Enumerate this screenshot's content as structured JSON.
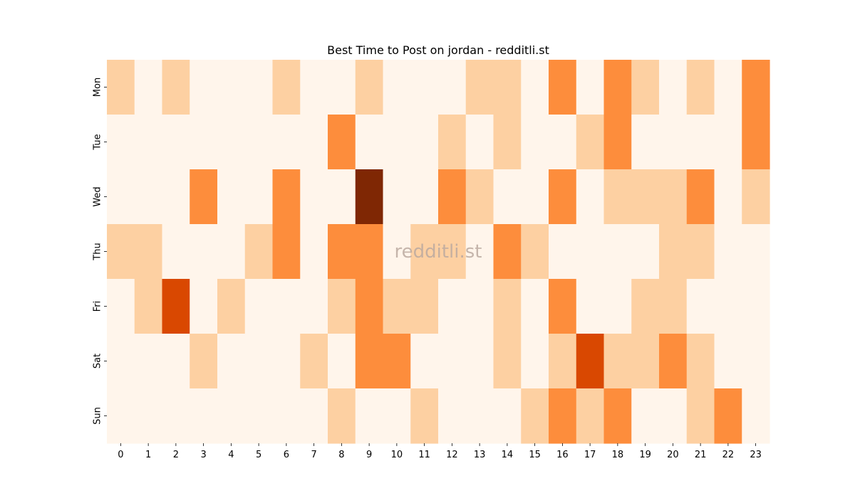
{
  "chart_data": {
    "type": "heatmap",
    "title": "Best Time to Post on jordan - redditli.st",
    "watermark": "redditli.st",
    "x": [
      "0",
      "1",
      "2",
      "3",
      "4",
      "5",
      "6",
      "7",
      "8",
      "9",
      "10",
      "11",
      "12",
      "13",
      "14",
      "15",
      "16",
      "17",
      "18",
      "19",
      "20",
      "21",
      "22",
      "23"
    ],
    "y": [
      "Mon",
      "Tue",
      "Wed",
      "Thu",
      "Fri",
      "Sat",
      "Sun"
    ],
    "values": [
      [
        1,
        0,
        1,
        0,
        0,
        0,
        1,
        0,
        0,
        1,
        0,
        0,
        0,
        1,
        1,
        0,
        2,
        0,
        2,
        1,
        0,
        1,
        0,
        2
      ],
      [
        0,
        0,
        0,
        0,
        0,
        0,
        0,
        0,
        2,
        0,
        0,
        0,
        1,
        0,
        1,
        0,
        0,
        1,
        2,
        0,
        0,
        0,
        0,
        2
      ],
      [
        0,
        0,
        0,
        2,
        0,
        0,
        2,
        0,
        0,
        4,
        0,
        0,
        2,
        1,
        0,
        0,
        2,
        0,
        1,
        1,
        1,
        2,
        0,
        1
      ],
      [
        1,
        1,
        0,
        0,
        0,
        1,
        2,
        0,
        2,
        2,
        0,
        1,
        1,
        0,
        2,
        1,
        0,
        0,
        0,
        0,
        1,
        1,
        0,
        0
      ],
      [
        0,
        1,
        3,
        0,
        1,
        0,
        0,
        0,
        1,
        2,
        1,
        1,
        0,
        0,
        1,
        0,
        2,
        0,
        0,
        1,
        1,
        0,
        0,
        0
      ],
      [
        0,
        0,
        0,
        1,
        0,
        0,
        0,
        1,
        0,
        2,
        2,
        0,
        0,
        0,
        1,
        0,
        1,
        3,
        1,
        1,
        2,
        1,
        0,
        0
      ],
      [
        0,
        0,
        0,
        0,
        0,
        0,
        0,
        0,
        1,
        0,
        0,
        1,
        0,
        0,
        0,
        1,
        2,
        1,
        2,
        0,
        0,
        1,
        2,
        0
      ]
    ],
    "colormap": [
      "#fff5eb",
      "#fdd0a2",
      "#fd8d3c",
      "#d94801",
      "#7f2704"
    ],
    "xlabel": "",
    "ylabel": "",
    "legend": "none",
    "grid": false
  }
}
